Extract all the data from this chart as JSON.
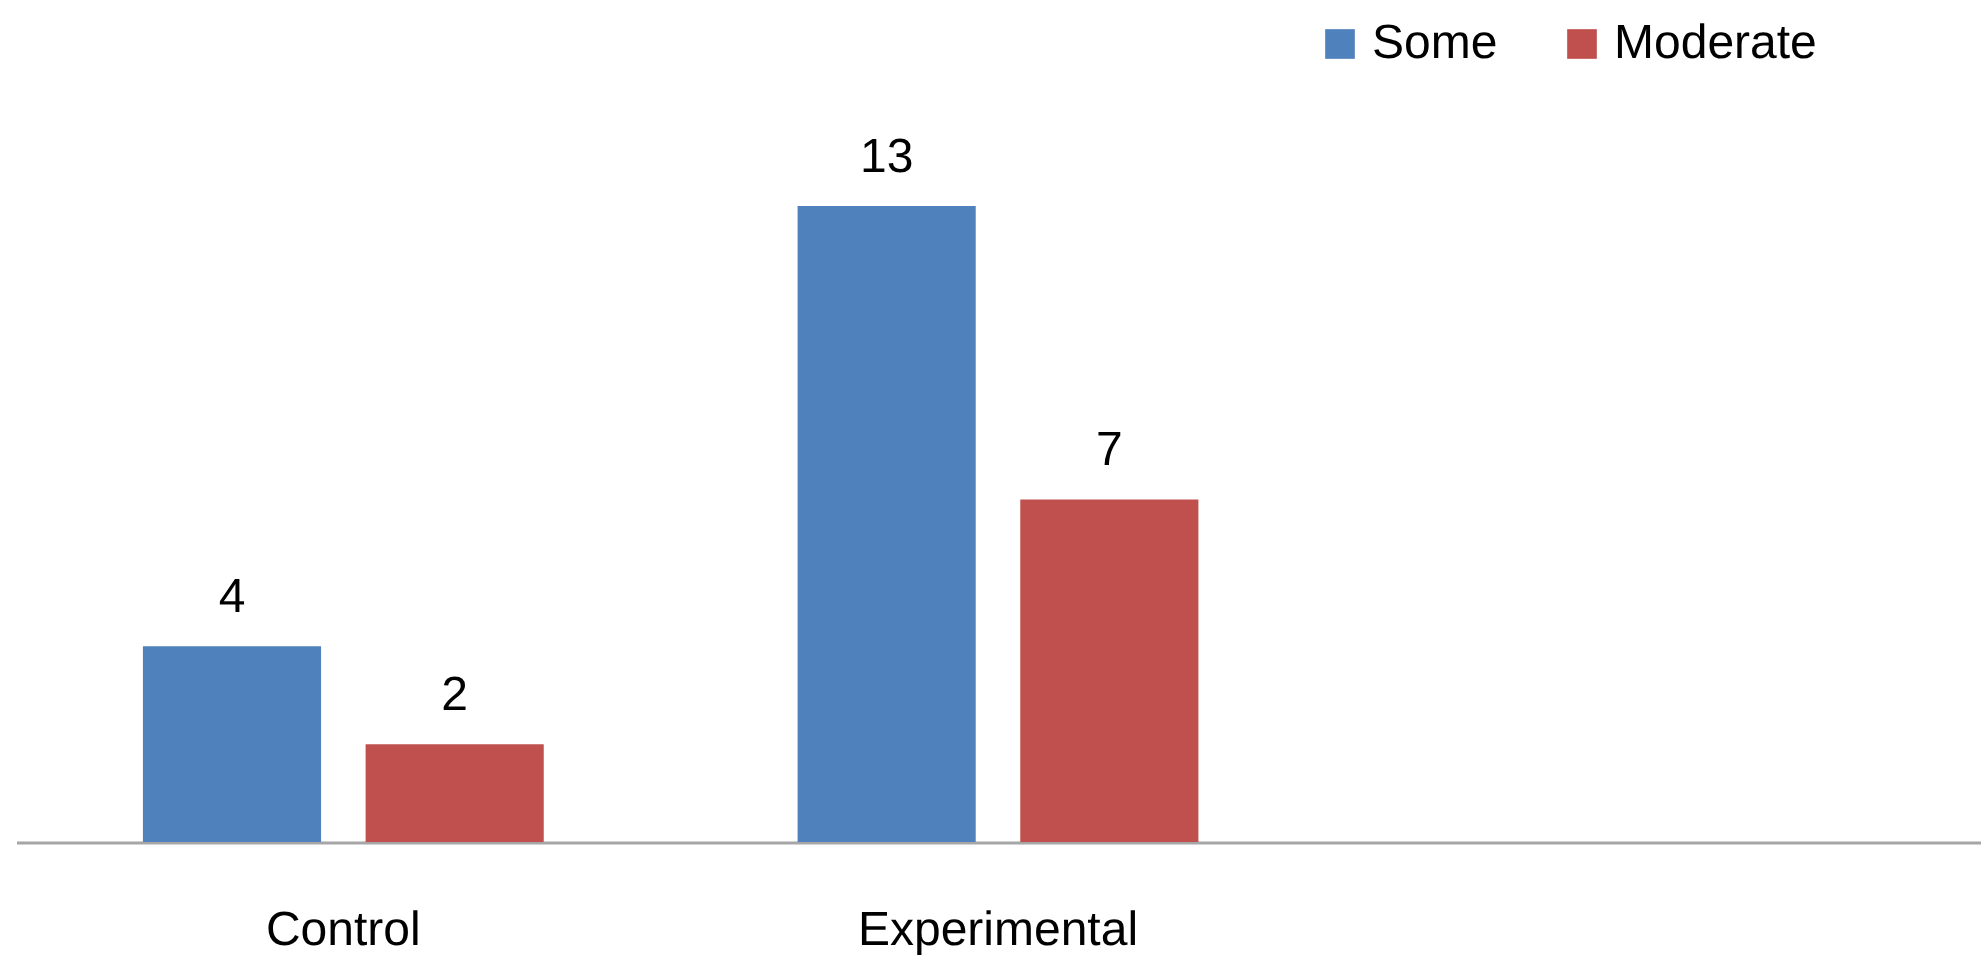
{
  "chart_data": {
    "type": "bar",
    "categories": [
      "Control",
      "Experimental",
      null
    ],
    "series": [
      {
        "name": "Some",
        "color": "#4f81bd",
        "values": [
          4,
          13,
          null
        ]
      },
      {
        "name": "Moderate",
        "color": "#c0504d",
        "values": [
          2,
          7,
          null
        ]
      }
    ],
    "data_labels": true,
    "legend": "top right"
  }
}
